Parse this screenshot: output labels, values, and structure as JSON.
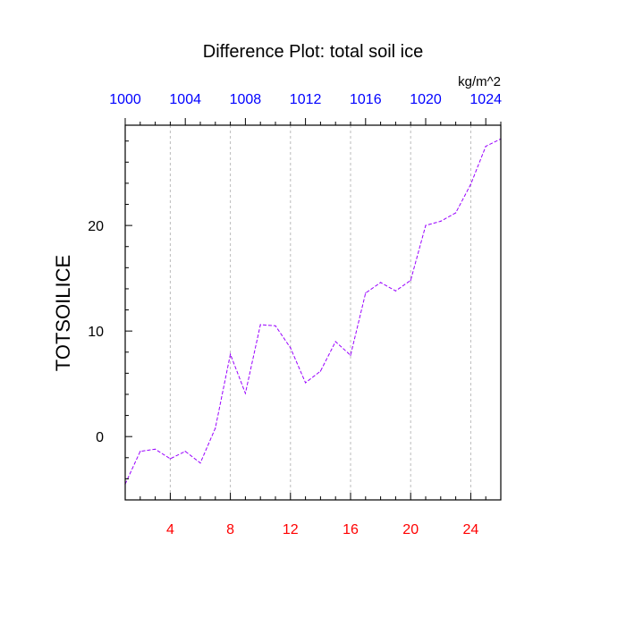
{
  "chart_data": {
    "type": "line",
    "title": "Difference Plot: total soil ice",
    "ylabel": "TOTSOILICE",
    "units": "kg/m^2",
    "xlim": [
      1,
      26
    ],
    "ylim": [
      -6,
      29.5
    ],
    "grid": true,
    "grid_style": "vertical dashed lines at bottom-axis major ticks",
    "bottom_axis": {
      "ticks": [
        4,
        8,
        12,
        16,
        20,
        24
      ],
      "tick_labels": [
        "4",
        "8",
        "12",
        "16",
        "20",
        "24"
      ],
      "color": "#ff0000"
    },
    "top_axis": {
      "ticks": [
        1000,
        1004,
        1008,
        1012,
        1016,
        1020,
        1024
      ],
      "tick_labels": [
        "1000",
        "1004",
        "1008",
        "1012",
        "1016",
        "1020",
        "1024"
      ],
      "range": [
        1000,
        1025
      ],
      "color": "#0000ff"
    },
    "left_axis": {
      "ticks": [
        0,
        10,
        20
      ],
      "tick_labels": [
        "0",
        "10",
        "20"
      ]
    },
    "series": [
      {
        "color": "#9900ff",
        "style": "dashed",
        "x": [
          1,
          2,
          3,
          4,
          5,
          6,
          7,
          8,
          9,
          10,
          11,
          12,
          13,
          14,
          15,
          16,
          17,
          18,
          19,
          20,
          21,
          22,
          23,
          24,
          25,
          26
        ],
        "values": [
          -4.5,
          -1.4,
          -1.2,
          -2.1,
          -1.4,
          -2.5,
          0.8,
          7.8,
          4.1,
          10.6,
          10.5,
          8.4,
          5.1,
          6.2,
          9.0,
          7.7,
          13.6,
          14.6,
          13.8,
          14.8,
          20.0,
          20.4,
          21.2,
          23.9,
          27.5,
          28.2
        ]
      }
    ]
  }
}
